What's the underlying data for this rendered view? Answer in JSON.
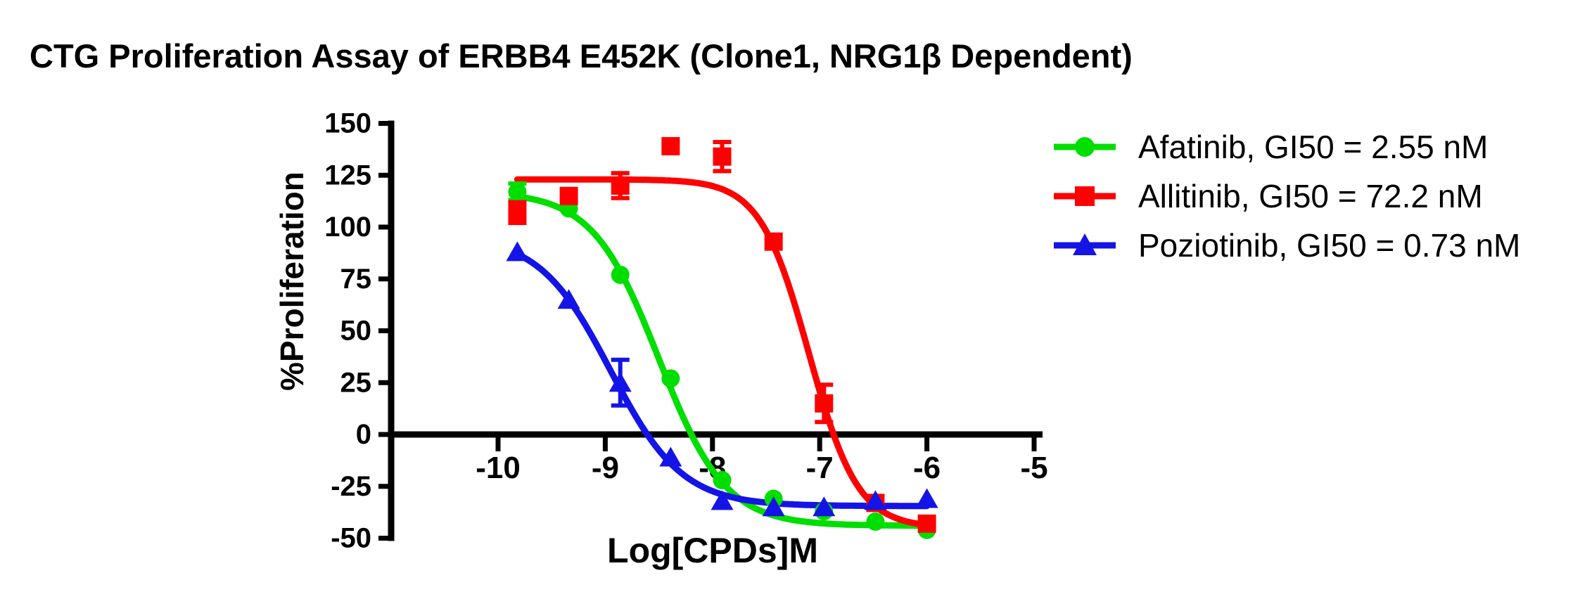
{
  "title": "CTG Proliferation Assay of ERBB4 E452K (Clone1, NRG1β Dependent)",
  "axes": {
    "y_label": "%Proliferation",
    "x_label": "Log[CPDs]M",
    "y_ticks": [
      150,
      125,
      100,
      75,
      50,
      25,
      0,
      -25,
      -50
    ],
    "x_ticks": [
      -10,
      -9,
      -8,
      -7,
      -6,
      -5
    ],
    "ylim": [
      -50,
      150
    ],
    "xlim": [
      -11,
      -4.9
    ],
    "axis_color": "#000000"
  },
  "chart_data": {
    "type": "scatter",
    "xlabel": "Log[CPDs]M",
    "ylabel": "%Proliferation",
    "x_log_molar": [
      -9.82,
      -9.34,
      -8.86,
      -8.39,
      -7.91,
      -7.43,
      -6.96,
      -6.48,
      -6.0
    ],
    "series": [
      {
        "name": "Afatinib",
        "gi50": "2.55 nM",
        "color": "#00DE00",
        "marker": "circle",
        "values": [
          117,
          109,
          77,
          27,
          -22,
          -31,
          -37,
          -42,
          -46
        ],
        "errors": [
          4,
          0,
          0,
          0,
          0,
          0,
          0,
          0,
          0
        ],
        "fit": {
          "top": 117,
          "bottom": -44,
          "logec50": -8.5,
          "hill": 1.4
        }
      },
      {
        "name": "Allitinib",
        "gi50": "72.2 nM",
        "color": "#FF0000",
        "marker": "square",
        "values": [
          107,
          115,
          120,
          139,
          134,
          93,
          15,
          -33,
          -43
        ],
        "errors": [
          5,
          0,
          6,
          0,
          7,
          0,
          9,
          0,
          0
        ],
        "fit": {
          "top": 123,
          "bottom": -45,
          "logec50": -7.1,
          "hill": 1.9
        }
      },
      {
        "name": "Poziotinib",
        "gi50": "0.73 nM",
        "color": "#1414E6",
        "marker": "triangle",
        "values": [
          88,
          65,
          25,
          -11,
          -32,
          -35,
          -35,
          -32,
          -31
        ],
        "errors": [
          0,
          0,
          11,
          0,
          0,
          0,
          0,
          0,
          0
        ],
        "fit": {
          "top": 96,
          "bottom": -34.5,
          "logec50": -8.95,
          "hill": 1.3
        }
      }
    ]
  },
  "legend": {
    "items": [
      {
        "label": "Afatinib, GI50 = 2.55 nM"
      },
      {
        "label": "Allitinib, GI50 = 72.2 nM"
      },
      {
        "label": "Poziotinib, GI50 = 0.73 nM"
      }
    ]
  }
}
